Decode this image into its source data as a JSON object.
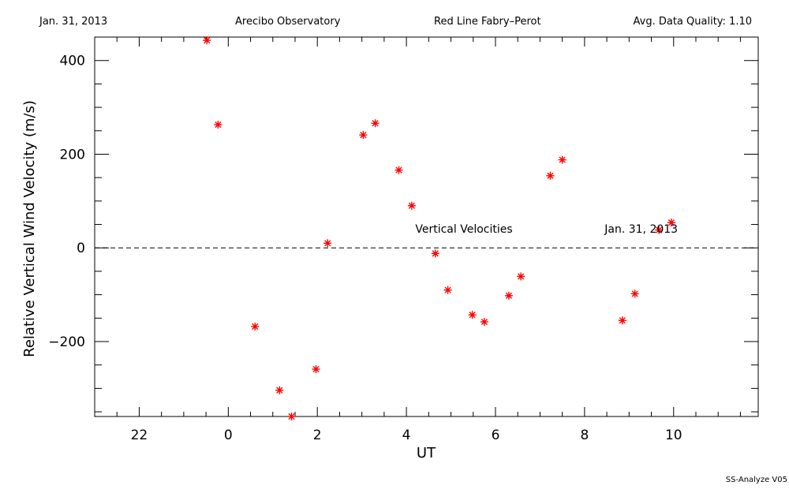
{
  "header": {
    "date": "Jan. 31, 2013",
    "observatory": "Arecibo Observatory",
    "instrument": "Red Line Fabry–Perot",
    "quality": "Avg. Data Quality: 1.10"
  },
  "footer": {
    "software": "SS-Analyze V05"
  },
  "chart_data": {
    "type": "scatter",
    "xlabel": "UT",
    "ylabel": "Relative Vertical Wind Velocity (m/s)",
    "xlim": [
      21.0,
      11.9
    ],
    "ylim": [
      -360,
      450
    ],
    "x_ticks": [
      {
        "value": 22,
        "label": "22"
      },
      {
        "value": 0,
        "label": "0"
      },
      {
        "value": 2,
        "label": "2"
      },
      {
        "value": 4,
        "label": "4"
      },
      {
        "value": 6,
        "label": "6"
      },
      {
        "value": 8,
        "label": "8"
      },
      {
        "value": 10,
        "label": "10"
      }
    ],
    "y_ticks": [
      {
        "value": 400,
        "label": "400"
      },
      {
        "value": 200,
        "label": "200"
      },
      {
        "value": 0,
        "label": "0"
      },
      {
        "value": -200,
        "label": "−200"
      }
    ],
    "reference_line": {
      "y": 0,
      "style": "dashed"
    },
    "annotations": [
      {
        "text": "Vertical Velocities",
        "x": 4.2,
        "y": 32
      },
      {
        "text": "Jan. 31, 2013",
        "x": 8.45,
        "y": 32
      }
    ],
    "marker": "asterisk",
    "color": "#ff0000",
    "series": [
      {
        "x": [
          23.52,
          23.77,
          0.6,
          1.15,
          1.42,
          1.97,
          2.23,
          3.03,
          3.3,
          3.83,
          4.12,
          4.65,
          4.93,
          5.48,
          5.75,
          6.3,
          6.57,
          7.23,
          7.5,
          8.85,
          9.13,
          9.67,
          9.95
        ],
        "y": [
          443,
          263,
          -168,
          -304,
          -360,
          -259,
          10,
          241,
          266,
          166,
          90,
          -12,
          -90,
          -143,
          -158,
          -102,
          -61,
          154,
          188,
          -155,
          -98,
          38,
          54
        ]
      }
    ]
  }
}
